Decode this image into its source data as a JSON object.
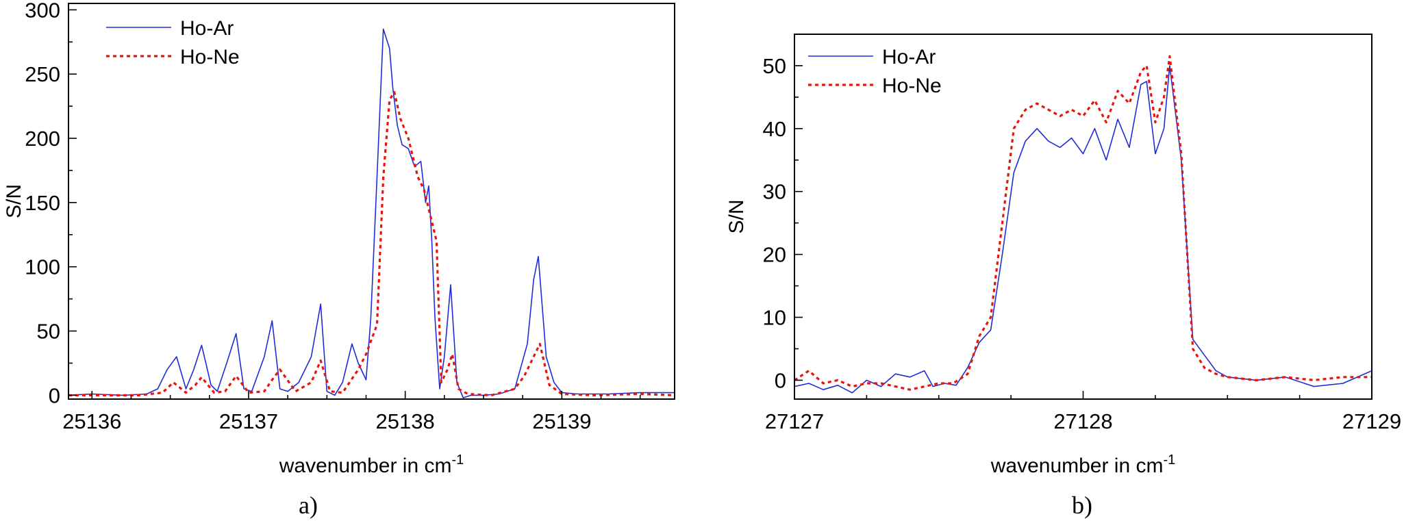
{
  "chart_data": [
    {
      "type": "line",
      "panel_label": "a)",
      "xlabel": "wavenumber in cm",
      "xlabel_superscript": "-1",
      "ylabel": "S/N",
      "xlim": [
        25135.85,
        25139.72
      ],
      "ylim": [
        -3,
        305
      ],
      "xticks": [
        25136,
        25137,
        25138,
        25139
      ],
      "xtick_labels": [
        "25136",
        "25137",
        "25138",
        "25139"
      ],
      "yticks": [
        0,
        50,
        100,
        150,
        200,
        250,
        300
      ],
      "ytick_labels": [
        "0",
        "50",
        "100",
        "150",
        "200",
        "250",
        "300"
      ],
      "grid": false,
      "legend_position": "top-left",
      "series": [
        {
          "name": "Ho-Ar",
          "color": "#1f2bd6",
          "style": "solid",
          "x": [
            25135.85,
            25136.0,
            25136.2,
            25136.35,
            25136.42,
            25136.48,
            25136.54,
            25136.6,
            25136.65,
            25136.7,
            25136.76,
            25136.8,
            25136.86,
            25136.92,
            25136.97,
            25137.02,
            25137.1,
            25137.15,
            25137.2,
            25137.25,
            25137.32,
            25137.4,
            25137.46,
            25137.5,
            25137.55,
            25137.6,
            25137.66,
            25137.7,
            25137.75,
            25137.78,
            25137.82,
            25137.86,
            25137.9,
            25137.92,
            25137.95,
            25137.98,
            25138.02,
            25138.06,
            25138.1,
            25138.13,
            25138.15,
            25138.17,
            25138.19,
            25138.22,
            25138.25,
            25138.29,
            25138.33,
            25138.37,
            25138.42,
            25138.5,
            25138.6,
            25138.7,
            25138.78,
            25138.82,
            25138.85,
            25138.9,
            25138.95,
            25139.0,
            25139.1,
            25139.3,
            25139.5,
            25139.72
          ],
          "y": [
            0,
            1,
            0,
            1,
            5,
            20,
            30,
            5,
            20,
            39,
            8,
            3,
            25,
            48,
            5,
            3,
            30,
            58,
            5,
            3,
            10,
            30,
            71,
            3,
            0,
            10,
            40,
            25,
            12,
            60,
            170,
            285,
            270,
            240,
            210,
            195,
            192,
            178,
            182,
            150,
            163,
            120,
            60,
            5,
            30,
            86,
            10,
            -2,
            0,
            0,
            1,
            5,
            40,
            90,
            108,
            30,
            10,
            2,
            1,
            1,
            2,
            2
          ]
        },
        {
          "name": "Ho-Ne",
          "color": "#e8150d",
          "style": "dotted",
          "x": [
            25135.85,
            25136.0,
            25136.3,
            25136.45,
            25136.52,
            25136.6,
            25136.66,
            25136.7,
            25136.78,
            25136.85,
            25136.92,
            25137.0,
            25137.1,
            25137.15,
            25137.2,
            25137.3,
            25137.4,
            25137.46,
            25137.52,
            25137.6,
            25137.7,
            25137.75,
            25137.82,
            25137.86,
            25137.9,
            25137.93,
            25137.97,
            25138.02,
            25138.08,
            25138.12,
            25138.16,
            25138.2,
            25138.23,
            25138.27,
            25138.3,
            25138.34,
            25138.4,
            25138.55,
            25138.7,
            25138.76,
            25138.82,
            25138.86,
            25138.92,
            25139.0,
            25139.2,
            25139.5,
            25139.72
          ],
          "y": [
            0,
            0,
            0,
            2,
            10,
            2,
            8,
            14,
            2,
            3,
            15,
            2,
            3,
            12,
            20,
            3,
            10,
            27,
            3,
            2,
            20,
            32,
            55,
            170,
            230,
            236,
            215,
            200,
            170,
            160,
            140,
            120,
            10,
            20,
            32,
            5,
            1,
            0,
            5,
            15,
            30,
            40,
            8,
            1,
            0,
            1,
            0
          ]
        }
      ]
    },
    {
      "type": "line",
      "panel_label": "b)",
      "xlabel": "wavenumber in cm",
      "xlabel_superscript": "-1",
      "ylabel": "S/N",
      "xlim": [
        27127,
        27129
      ],
      "ylim": [
        -3,
        55
      ],
      "xticks": [
        27127,
        27128,
        27129
      ],
      "xtick_labels": [
        "27127",
        "27128",
        "27129"
      ],
      "yticks": [
        0,
        10,
        20,
        30,
        40,
        50
      ],
      "ytick_labels": [
        "0",
        "10",
        "20",
        "30",
        "40",
        "50"
      ],
      "grid": false,
      "legend_position": "top-left",
      "series": [
        {
          "name": "Ho-Ar",
          "color": "#1f2bd6",
          "style": "solid",
          "x": [
            27127.0,
            27127.05,
            27127.1,
            27127.15,
            27127.2,
            27127.25,
            27127.3,
            27127.35,
            27127.4,
            27127.45,
            27127.48,
            27127.52,
            27127.56,
            27127.6,
            27127.64,
            27127.68,
            27127.72,
            27127.76,
            27127.8,
            27127.84,
            27127.88,
            27127.92,
            27127.96,
            27128.0,
            27128.04,
            27128.08,
            27128.12,
            27128.16,
            27128.2,
            27128.22,
            27128.25,
            27128.28,
            27128.3,
            27128.34,
            27128.38,
            27128.42,
            27128.46,
            27128.5,
            27128.6,
            27128.7,
            27128.8,
            27128.9,
            27129.0
          ],
          "y": [
            -1,
            -0.5,
            -1.5,
            -0.8,
            -2,
            0,
            -1,
            1,
            0.5,
            1.5,
            -1,
            -0.5,
            -0.8,
            2,
            6,
            8,
            20,
            33,
            38,
            40,
            38,
            37,
            38.5,
            36,
            40,
            35,
            41.5,
            37,
            47,
            47.5,
            36,
            40,
            50,
            35,
            6.5,
            4,
            1.5,
            0.5,
            0,
            0.5,
            -1,
            -0.5,
            1.5
          ]
        },
        {
          "name": "Ho-Ne",
          "color": "#e8150d",
          "style": "dotted",
          "x": [
            27127.0,
            27127.05,
            27127.1,
            27127.15,
            27127.2,
            27127.25,
            27127.3,
            27127.35,
            27127.4,
            27127.45,
            27127.5,
            27127.55,
            27127.6,
            27127.64,
            27127.68,
            27127.72,
            27127.76,
            27127.8,
            27127.84,
            27127.88,
            27127.92,
            27127.96,
            27128.0,
            27128.04,
            27128.08,
            27128.12,
            27128.16,
            27128.2,
            27128.22,
            27128.25,
            27128.28,
            27128.3,
            27128.34,
            27128.38,
            27128.42,
            27128.46,
            27128.5,
            27128.6,
            27128.7,
            27128.8,
            27128.9,
            27129.0
          ],
          "y": [
            0,
            1.5,
            -0.5,
            0,
            -1,
            -0.5,
            -0.5,
            -1,
            -1.5,
            -1,
            -0.5,
            -0.5,
            1,
            7,
            10,
            25,
            40,
            43,
            44,
            43,
            42,
            43,
            42,
            44.5,
            41,
            46,
            44,
            49,
            50,
            41,
            45,
            51.5,
            36,
            5,
            2,
            1,
            0.5,
            0,
            0.5,
            0,
            0.5,
            0.5
          ]
        }
      ]
    }
  ]
}
